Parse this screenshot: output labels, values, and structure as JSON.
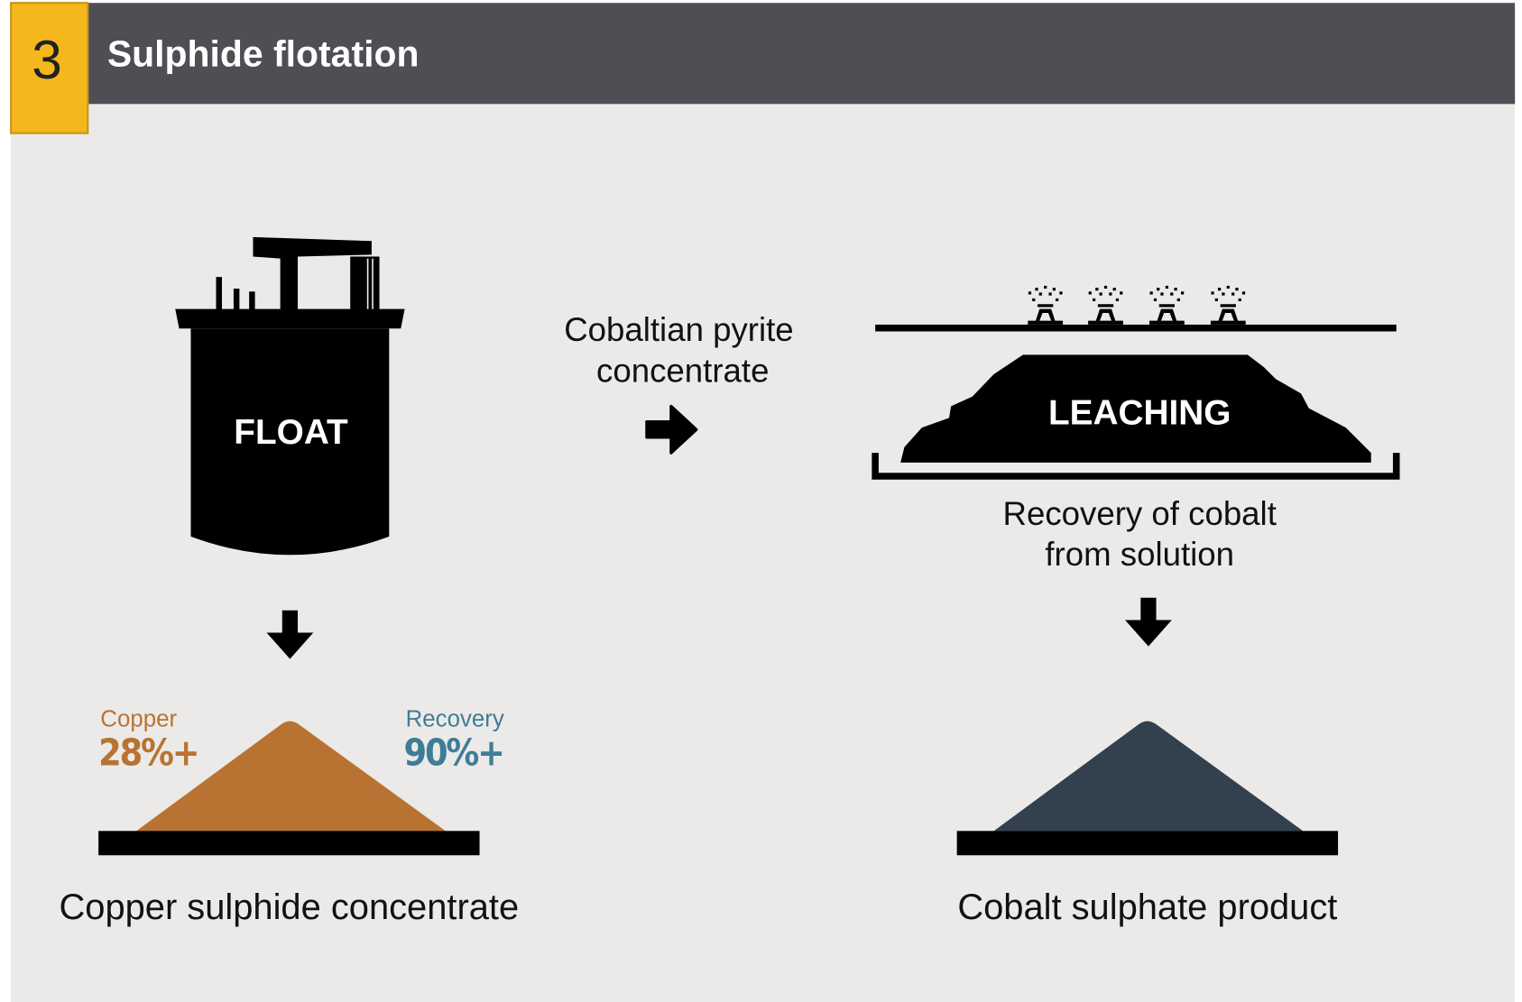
{
  "header": {
    "number": "3",
    "title": "Sulphide flotation"
  },
  "float": {
    "label": "FLOAT"
  },
  "copper": {
    "label": "Copper",
    "value": "28%+"
  },
  "recovery": {
    "label": "Recovery",
    "value": "90%+"
  },
  "copper_product": "Copper sulphide concentrate",
  "intermediate": [
    "Cobaltian pyrite",
    "concentrate"
  ],
  "leaching": {
    "label": "LEACHING",
    "caption": [
      "Recovery of cobalt",
      "from solution"
    ]
  },
  "cobalt_product": "Cobalt sulphate product"
}
